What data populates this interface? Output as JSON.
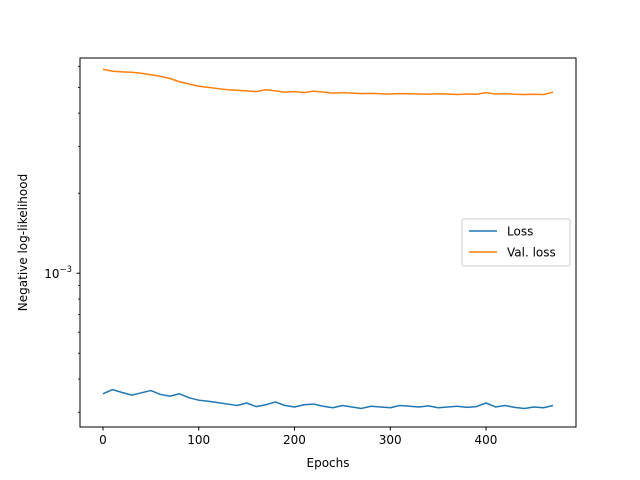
{
  "chart_data": {
    "type": "line",
    "title": "",
    "xlabel": "Epochs",
    "ylabel": "Negative log-likelihood",
    "xlim": [
      -24,
      494
    ],
    "ylim": [
      0.000264,
      0.00645
    ],
    "yscale": "log",
    "xticks": [
      0,
      100,
      200,
      300,
      400
    ],
    "yticks": [
      {
        "value": 0.001,
        "base": "10",
        "exponent": "−3"
      }
    ],
    "grid": false,
    "legend": {
      "position": "center-right",
      "entries": [
        "Loss",
        "Val. loss"
      ]
    },
    "series": [
      {
        "name": "Loss",
        "color": "#1f77b4",
        "x": [
          0,
          10,
          20,
          30,
          40,
          50,
          60,
          70,
          80,
          90,
          100,
          110,
          120,
          130,
          140,
          150,
          160,
          170,
          180,
          190,
          200,
          210,
          220,
          230,
          240,
          250,
          260,
          270,
          280,
          290,
          300,
          310,
          320,
          330,
          340,
          350,
          360,
          370,
          380,
          390,
          400,
          410,
          420,
          430,
          440,
          450,
          460,
          470
        ],
        "y": [
          0.000352,
          0.000365,
          0.000356,
          0.000348,
          0.000355,
          0.000362,
          0.00035,
          0.000345,
          0.000352,
          0.00034,
          0.000333,
          0.00033,
          0.000326,
          0.000322,
          0.000318,
          0.000325,
          0.000315,
          0.00032,
          0.000328,
          0.000318,
          0.000314,
          0.00032,
          0.000322,
          0.000316,
          0.000312,
          0.000318,
          0.000314,
          0.00031,
          0.000316,
          0.000314,
          0.000312,
          0.000318,
          0.000316,
          0.000314,
          0.000317,
          0.000312,
          0.000314,
          0.000316,
          0.000313,
          0.000315,
          0.000325,
          0.000314,
          0.000318,
          0.000313,
          0.00031,
          0.000314,
          0.000312,
          0.000318
        ]
      },
      {
        "name": "Val. loss",
        "color": "#ff7f0e",
        "x": [
          0,
          10,
          20,
          30,
          40,
          50,
          60,
          70,
          80,
          90,
          100,
          110,
          120,
          130,
          140,
          150,
          160,
          170,
          180,
          190,
          200,
          210,
          220,
          230,
          240,
          250,
          260,
          270,
          280,
          290,
          300,
          310,
          320,
          330,
          340,
          350,
          360,
          370,
          380,
          390,
          400,
          410,
          420,
          430,
          440,
          450,
          460,
          470
        ],
        "y": [
          0.00585,
          0.00575,
          0.00572,
          0.0057,
          0.00565,
          0.00558,
          0.0055,
          0.0054,
          0.00525,
          0.00515,
          0.00505,
          0.005,
          0.00495,
          0.0049,
          0.00488,
          0.00485,
          0.00482,
          0.0049,
          0.00485,
          0.0048,
          0.00482,
          0.00478,
          0.00484,
          0.0048,
          0.00476,
          0.00478,
          0.00476,
          0.00474,
          0.00475,
          0.00473,
          0.00472,
          0.00474,
          0.00473,
          0.00472,
          0.00471,
          0.00473,
          0.00472,
          0.0047,
          0.00472,
          0.00471,
          0.00478,
          0.00472,
          0.00474,
          0.00471,
          0.0047,
          0.00471,
          0.0047,
          0.0048
        ]
      }
    ]
  }
}
